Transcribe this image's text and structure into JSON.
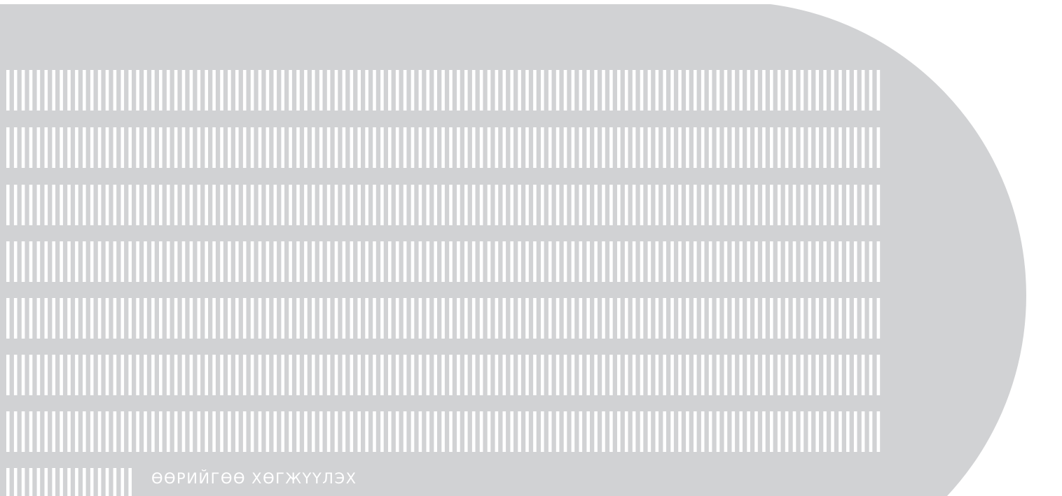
{
  "banner": {
    "caption": "ӨӨРИЙГӨӨ ХӨГЖҮҮЛЭХ",
    "caption_partial": "",
    "background_color": "#d1d2d4",
    "stripe_color": "#ffffff",
    "page_color": "#ffffff",
    "pattern": "vertical-bar-rows",
    "stripe_rows": 8
  }
}
